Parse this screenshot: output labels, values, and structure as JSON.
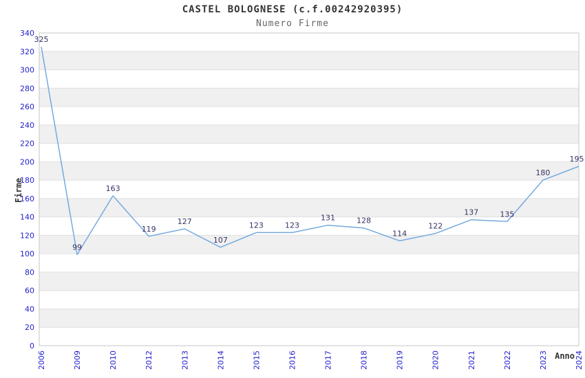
{
  "chart_data": {
    "type": "line",
    "title": "CASTEL BOLOGNESE (c.f.00242920395)",
    "subtitle": "Numero Firme",
    "xlabel": "Anno",
    "ylabel": "Firme",
    "categories": [
      "2006",
      "2009",
      "2010",
      "2012",
      "2013",
      "2014",
      "2015",
      "2016",
      "2017",
      "2018",
      "2019",
      "2020",
      "2021",
      "2022",
      "2023",
      "2024"
    ],
    "values": [
      325,
      99,
      163,
      119,
      127,
      107,
      123,
      123,
      131,
      128,
      114,
      122,
      137,
      135,
      180,
      195
    ],
    "ylim": [
      0,
      340
    ],
    "y_tick_step": 20,
    "grid": "horizontal-bands",
    "legend": "none",
    "point_labels": true
  },
  "colors": {
    "line": "#74a9e0",
    "tick_label": "#2222cc",
    "point_label": "#333366",
    "band": "#f0f0f0",
    "gridline": "#e0e0e0",
    "border": "#c6c6c6",
    "title": "#333333",
    "subtitle": "#666666",
    "axis_title": "#333333"
  }
}
